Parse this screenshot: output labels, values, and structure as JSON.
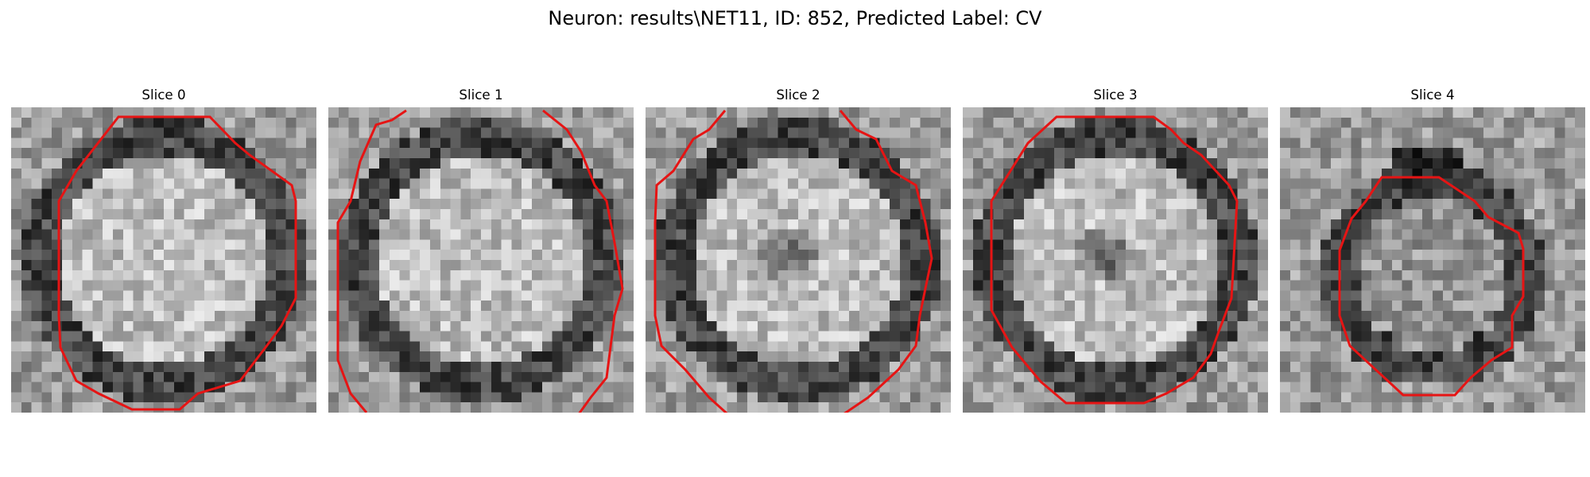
{
  "figure": {
    "title": "Neuron: results\\NET11, ID: 852, Predicted Label: CV",
    "contour_color": "#e61414",
    "colormap": "gray",
    "slices": [
      {
        "label": "Slice 0",
        "contour": "full",
        "core": "bright"
      },
      {
        "label": "Slice 1",
        "contour": "open-edges",
        "core": "bright"
      },
      {
        "label": "Slice 2",
        "contour": "open-edges",
        "core": "dark-center"
      },
      {
        "label": "Slice 3",
        "contour": "full",
        "core": "dark-center"
      },
      {
        "label": "Slice 4",
        "contour": "small",
        "core": "textured"
      }
    ]
  }
}
